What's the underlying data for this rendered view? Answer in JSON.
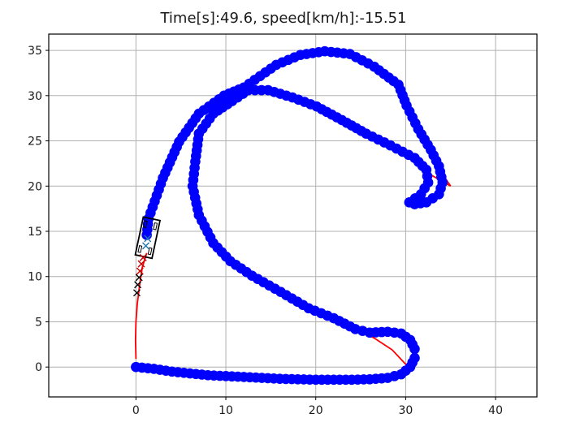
{
  "chart_data": {
    "type": "scatter",
    "title": "Time[s]:49.6, speed[km/h]:-15.51",
    "xlabel": "",
    "ylabel": "",
    "xlim": [
      -9.7,
      44.6
    ],
    "ylim": [
      -3.3,
      36.8
    ],
    "grid": true,
    "x_ticks": [
      0,
      10,
      20,
      30,
      40
    ],
    "y_ticks": [
      0,
      5,
      10,
      15,
      20,
      25,
      30,
      35
    ],
    "series": [
      {
        "name": "trajectory (blue dots)",
        "color": "#0000ff",
        "marker": "o",
        "points": [
          [
            0,
            0
          ],
          [
            2,
            -0.2
          ],
          [
            4,
            -0.5
          ],
          [
            6,
            -0.7
          ],
          [
            8,
            -0.9
          ],
          [
            10,
            -1.0
          ],
          [
            12,
            -1.1
          ],
          [
            14,
            -1.2
          ],
          [
            16,
            -1.3
          ],
          [
            18,
            -1.35
          ],
          [
            20,
            -1.4
          ],
          [
            22,
            -1.4
          ],
          [
            24,
            -1.4
          ],
          [
            26,
            -1.35
          ],
          [
            28,
            -1.2
          ],
          [
            29.5,
            -0.8
          ],
          [
            30.5,
            0
          ],
          [
            31,
            1
          ],
          [
            31,
            2
          ],
          [
            30.5,
            3
          ],
          [
            29.5,
            3.7
          ],
          [
            28,
            3.9
          ],
          [
            26,
            3.8
          ],
          [
            24.4,
            4.2
          ],
          [
            22,
            5.4
          ],
          [
            19.2,
            6.5
          ],
          [
            16.1,
            8.3
          ],
          [
            12.9,
            10.1
          ],
          [
            10.5,
            11.7
          ],
          [
            8.6,
            13.7
          ],
          [
            7.0,
            16.8
          ],
          [
            6.3,
            20.0
          ],
          [
            6.6,
            22.7
          ],
          [
            7.0,
            25.8
          ],
          [
            8.6,
            28.0
          ],
          [
            10.7,
            29.4
          ],
          [
            12.5,
            30.6
          ],
          [
            14.7,
            30.6
          ],
          [
            17.4,
            29.8
          ],
          [
            20.1,
            28.8
          ],
          [
            22.9,
            27.3
          ],
          [
            25.6,
            25.8
          ],
          [
            28.3,
            24.5
          ],
          [
            31,
            23.1
          ],
          [
            32.3,
            21.8
          ],
          [
            32.5,
            20.4
          ],
          [
            31.7,
            19.1
          ],
          [
            30.4,
            18.2
          ],
          [
            31,
            18
          ],
          [
            32.3,
            18.2
          ],
          [
            33.7,
            19.1
          ],
          [
            34.1,
            20.4
          ],
          [
            33.7,
            22.2
          ],
          [
            32.8,
            24
          ],
          [
            31.4,
            26.3
          ],
          [
            30.1,
            28.9
          ],
          [
            29.2,
            31.2
          ],
          [
            26.5,
            33.2
          ],
          [
            23.8,
            34.6
          ],
          [
            21,
            34.9
          ],
          [
            18.3,
            34.5
          ],
          [
            15.6,
            33.4
          ],
          [
            12,
            30.9
          ],
          [
            9.8,
            30
          ],
          [
            7,
            28
          ],
          [
            4.8,
            24.9
          ],
          [
            3,
            20.9
          ],
          [
            1.4,
            16.4
          ],
          [
            1.2,
            14.6
          ]
        ]
      },
      {
        "name": "reference path (red line)",
        "color": "#ff0000",
        "marker": "line",
        "segments": [
          [
            [
              0,
              0.9
            ],
            [
              -0.05,
              3
            ],
            [
              0,
              5
            ],
            [
              0.15,
              7
            ],
            [
              0.4,
              9
            ],
            [
              0.7,
              11
            ],
            [
              1.2,
              12.6
            ]
          ],
          [
            [
              24.4,
              4.4
            ],
            [
              26.5,
              3.2
            ],
            [
              28.5,
              1.9
            ],
            [
              30.2,
              0.1
            ]
          ],
          [
            [
              32.7,
              21.3
            ],
            [
              35,
              20
            ],
            [
              34.1,
              21.3
            ]
          ]
        ]
      },
      {
        "name": "predicted states (red x)",
        "color": "#cc0000",
        "marker": "x",
        "points": [
          [
            0.8,
            12.1
          ],
          [
            0.6,
            11.4
          ],
          [
            0.45,
            10.6
          ]
        ]
      },
      {
        "name": "reference states (black x)",
        "color": "#000000",
        "marker": "x",
        "points": [
          [
            0.35,
            9.9
          ],
          [
            0.2,
            9.1
          ],
          [
            0.1,
            8.2
          ]
        ]
      },
      {
        "name": "current target (steelblue x)",
        "color": "#1f77b4",
        "marker": "x",
        "points": [
          [
            1.1,
            13.4
          ],
          [
            1.3,
            14.2
          ]
        ]
      }
    ],
    "vehicle": {
      "center": [
        1.3,
        14.3
      ],
      "length": 4.3,
      "width": 1.9,
      "heading_deg": 78,
      "color": "#000000"
    }
  }
}
